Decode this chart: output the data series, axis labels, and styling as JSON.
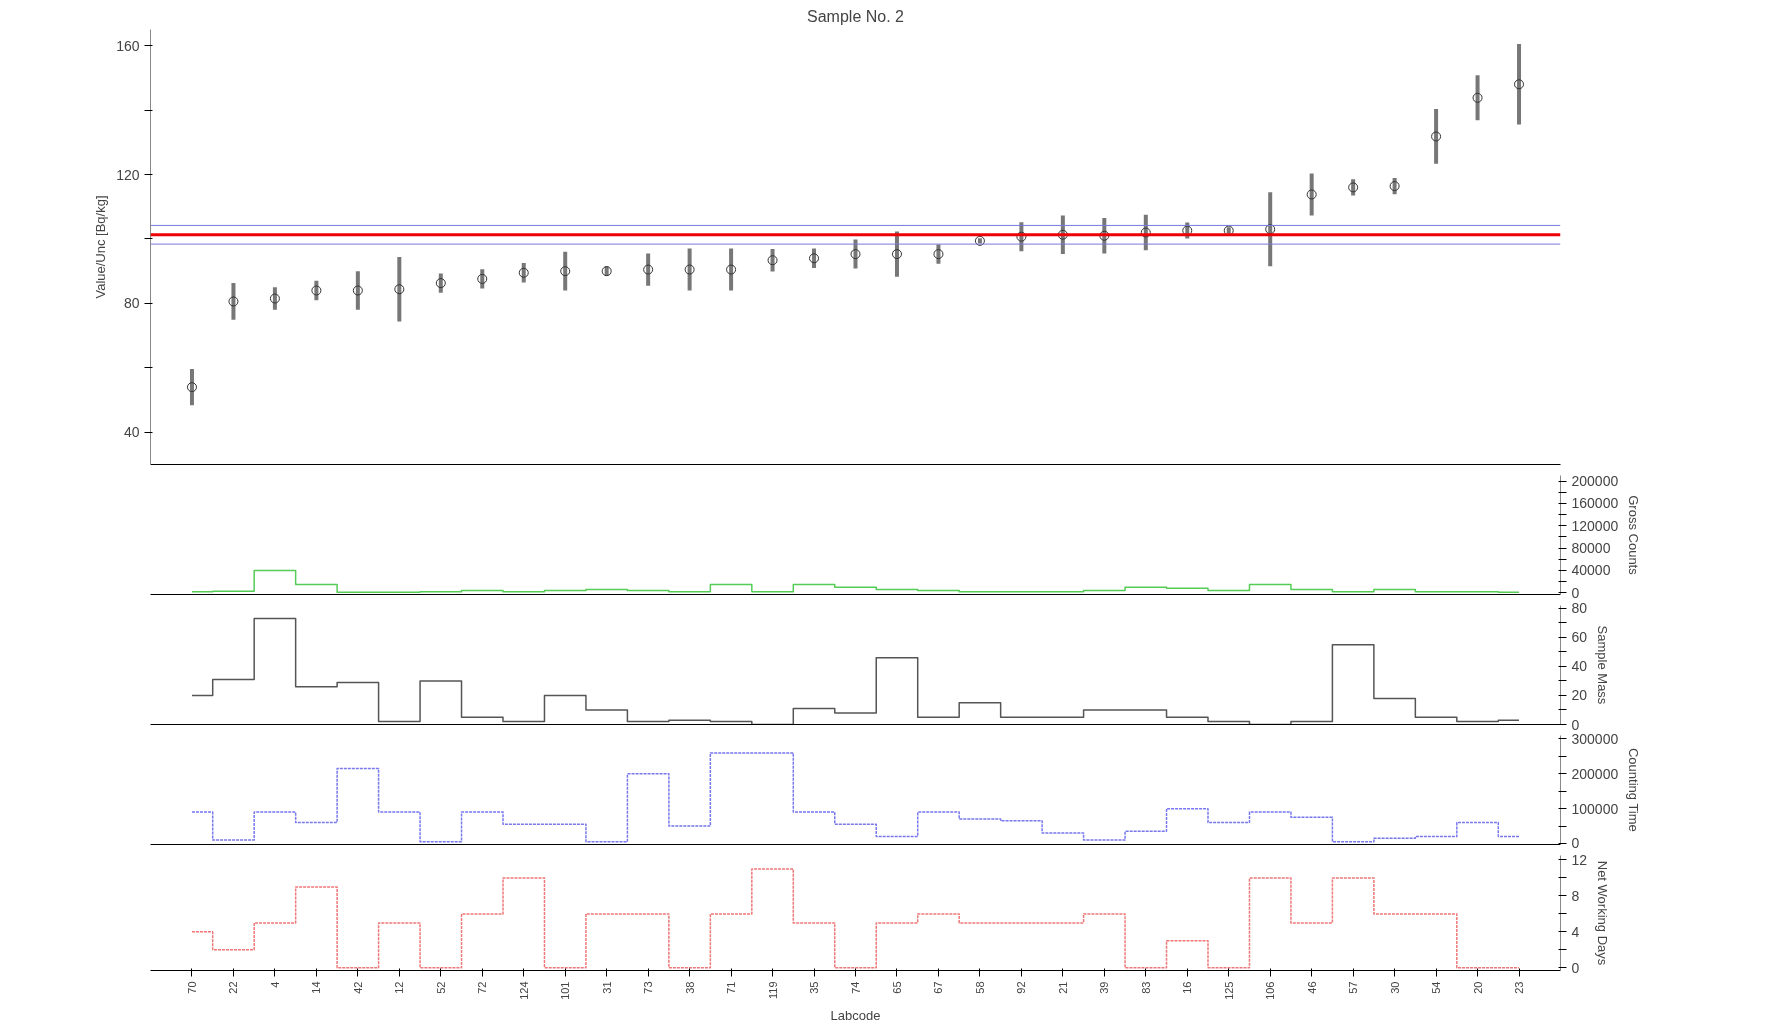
{
  "chart_data": [
    {
      "type": "scatter",
      "title": "Sample No. 2",
      "ylabel": "Value/Unc [Bq/kg]",
      "categories": [
        "70",
        "22",
        "4",
        "14",
        "42",
        "12",
        "52",
        "72",
        "124",
        "101",
        "31",
        "73",
        "38",
        "71",
        "119",
        "35",
        "74",
        "65",
        "67",
        "58",
        "92",
        "21",
        "39",
        "83",
        "16",
        "125",
        "106",
        "46",
        "57",
        "30",
        "54",
        "20",
        "23"
      ],
      "series": [
        {
          "color": "#333333",
          "values": [
            54,
            80.6,
            81.5,
            84,
            84,
            84.4,
            86.3,
            87.6,
            89.5,
            90,
            90,
            90.5,
            90.5,
            90.5,
            93.4,
            94,
            95.3,
            95.3,
            95.3,
            99.4,
            100.7,
            101.3,
            101,
            102,
            102.6,
            102.6,
            103,
            113.8,
            116,
            116.4,
            131.8,
            143.8,
            148
          ],
          "errors": [
            5.6,
            5.7,
            3.5,
            3,
            6,
            10,
            3,
            3,
            3,
            6,
            1.5,
            5,
            6.5,
            6.5,
            3.5,
            3,
            4.5,
            7,
            3,
            0.8,
            4.5,
            6,
            5.5,
            5.5,
            2.5,
            1,
            11.5,
            6.5,
            2.5,
            2.5,
            8.5,
            7,
            12.5
          ]
        }
      ],
      "marker": "circle",
      "ylim": [
        30,
        165
      ],
      "yticks": [
        40,
        {
          "value": 60,
          "label": null
        },
        80,
        {
          "value": 100,
          "label": null
        },
        120,
        {
          "value": 140,
          "label": null
        },
        160
      ],
      "ref_lines": [
        {
          "axis": "y",
          "value": 101.3,
          "color": "#ee0000"
        },
        {
          "axis": "y",
          "value": 104.2,
          "color": "#7777dd"
        },
        {
          "axis": "y",
          "value": 98.4,
          "color": "#7777dd"
        }
      ],
      "tick_labels": "y"
    },
    {
      "type": "step",
      "y2label": "Gross Counts",
      "categories": [
        "70",
        "22",
        "4",
        "14",
        "42",
        "12",
        "52",
        "72",
        "124",
        "101",
        "31",
        "73",
        "38",
        "71",
        "119",
        "35",
        "74",
        "65",
        "67",
        "58",
        "92",
        "21",
        "39",
        "83",
        "16",
        "125",
        "106",
        "46",
        "57",
        "30",
        "54",
        "20",
        "23"
      ],
      "series": [
        {
          "color": "#55cc55",
          "axis": "y2",
          "values": [
            2000,
            3000,
            40000,
            15000,
            1000,
            1000,
            2000,
            4000,
            2000,
            4000,
            6000,
            4000,
            2000,
            15000,
            2000,
            15000,
            10000,
            6000,
            4000,
            2000,
            2000,
            2000,
            4000,
            10000,
            8000,
            4000,
            15000,
            6000,
            2000,
            6000,
            2000,
            2000,
            1000
          ]
        }
      ],
      "y2lim": [
        -3000,
        210000
      ],
      "y2ticks": [
        0,
        {
          "value": 20000,
          "label": null
        },
        40000,
        {
          "value": 60000,
          "label": null
        },
        80000,
        {
          "value": 100000,
          "label": null
        },
        120000,
        {
          "value": 140000,
          "label": null
        },
        160000,
        {
          "value": 180000,
          "label": null
        },
        200000
      ],
      "tick_labels": "y"
    },
    {
      "type": "step",
      "y2label": "Sample Mass",
      "categories": [
        "70",
        "22",
        "4",
        "14",
        "42",
        "12",
        "52",
        "72",
        "124",
        "101",
        "31",
        "73",
        "38",
        "71",
        "119",
        "35",
        "74",
        "65",
        "67",
        "58",
        "92",
        "21",
        "39",
        "83",
        "16",
        "125",
        "106",
        "46",
        "57",
        "30",
        "54",
        "20",
        "23"
      ],
      "series": [
        {
          "color": "#555555",
          "axis": "y2",
          "values": [
            20,
            31,
            73,
            26,
            29,
            2,
            30,
            5,
            2,
            20,
            10,
            2,
            3,
            2,
            0,
            11,
            8,
            46,
            5,
            15,
            5,
            5,
            10,
            10,
            5,
            2,
            0,
            2,
            55,
            18,
            5,
            2,
            3
          ]
        }
      ],
      "y2lim": [
        0,
        82
      ],
      "y2ticks": [
        0,
        {
          "value": 10,
          "label": null
        },
        20,
        {
          "value": 30,
          "label": null
        },
        40,
        {
          "value": 50,
          "label": null
        },
        60,
        {
          "value": 70,
          "label": null
        },
        80
      ],
      "tick_labels": "y"
    },
    {
      "type": "step",
      "y2label": "Counting Time",
      "line_style": "dashed",
      "categories": [
        "70",
        "22",
        "4",
        "14",
        "42",
        "12",
        "52",
        "72",
        "124",
        "101",
        "31",
        "73",
        "38",
        "71",
        "119",
        "35",
        "74",
        "65",
        "67",
        "58",
        "92",
        "21",
        "39",
        "83",
        "16",
        "125",
        "106",
        "46",
        "57",
        "30",
        "54",
        "20",
        "23"
      ],
      "series": [
        {
          "color": "#7777ee",
          "axis": "y2",
          "values": [
            90000,
            10000,
            90000,
            60000,
            215000,
            90000,
            5000,
            90000,
            55000,
            55000,
            5000,
            200000,
            50000,
            260000,
            260000,
            90000,
            55000,
            20000,
            90000,
            70000,
            65000,
            30000,
            10000,
            35000,
            100000,
            60000,
            90000,
            75000,
            5000,
            15000,
            20000,
            60000,
            20000
          ]
        }
      ],
      "y2lim": [
        -3000,
        310000
      ],
      "y2ticks": [
        0,
        {
          "value": 50000,
          "label": null
        },
        100000,
        {
          "value": 150000,
          "label": null
        },
        200000,
        {
          "value": 250000,
          "label": null
        },
        300000
      ],
      "tick_labels": "y"
    },
    {
      "type": "step",
      "y2label": "Net Working Days",
      "xlabel": "Labcode",
      "line_style": "dashed",
      "categories": [
        "70",
        "22",
        "4",
        "14",
        "42",
        "12",
        "52",
        "72",
        "124",
        "101",
        "31",
        "73",
        "38",
        "71",
        "119",
        "35",
        "74",
        "65",
        "67",
        "58",
        "92",
        "21",
        "39",
        "83",
        "16",
        "125",
        "106",
        "46",
        "57",
        "30",
        "54",
        "20",
        "23"
      ],
      "series": [
        {
          "color": "#ee7777",
          "axis": "y2",
          "values": [
            4,
            2,
            5,
            9,
            0,
            5,
            0,
            6,
            10,
            0,
            6,
            6,
            0,
            6,
            11,
            5,
            0,
            5,
            6,
            5,
            5,
            5,
            6,
            0,
            3,
            0,
            10,
            5,
            10,
            6,
            6,
            0,
            0
          ]
        }
      ],
      "y2lim": [
        -0.3,
        12.5
      ],
      "y2ticks": [
        0,
        {
          "value": 2,
          "label": null
        },
        4,
        {
          "value": 6,
          "label": null
        },
        8,
        {
          "value": 10,
          "label": null
        },
        12
      ]
    }
  ]
}
